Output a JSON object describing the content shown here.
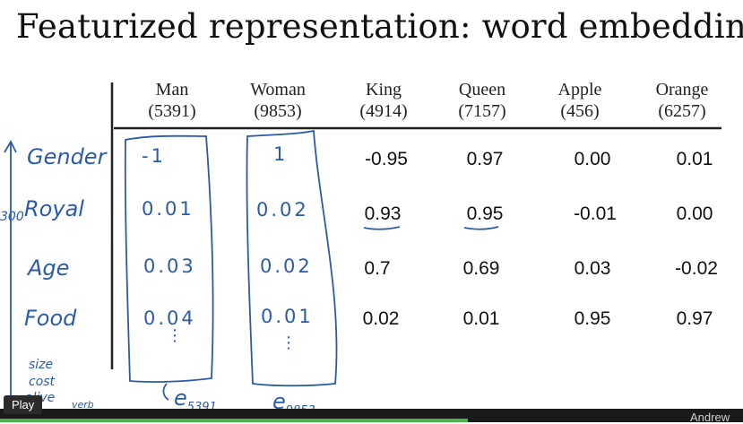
{
  "slide": {
    "title": "Featurized representation: word embedding",
    "columns": [
      {
        "word": "Man",
        "index": "(5391)"
      },
      {
        "word": "Woman",
        "index": "(9853)"
      },
      {
        "word": "King",
        "index": "(4914)"
      },
      {
        "word": "Queen",
        "index": "(7157)"
      },
      {
        "word": "Apple",
        "index": "(456)"
      },
      {
        "word": "Orange",
        "index": "(6257)"
      }
    ],
    "handwritten_rows": [
      "Gender",
      "Royal",
      "Age",
      "Food"
    ],
    "handwritten_extras": [
      "size",
      "cost",
      "alive",
      "verb"
    ],
    "dimension_label": "300",
    "handwritten_values": [
      [
        "-1",
        "1"
      ],
      [
        "0.01",
        "0.02"
      ],
      [
        "0.03",
        "0.02"
      ],
      [
        "0.04",
        "0.01"
      ]
    ],
    "vector_labels": [
      {
        "base": "e",
        "sub": "5391"
      },
      {
        "base": "e",
        "sub": "9853"
      }
    ],
    "typed_values": [
      [
        "-0.95",
        "0.97",
        "0.00",
        "0.01"
      ],
      [
        "0.93",
        "0.95",
        "-0.01",
        "0.00"
      ],
      [
        "0.7",
        "0.69",
        "0.03",
        "-0.02"
      ],
      [
        "0.02",
        "0.01",
        "0.95",
        "0.97"
      ]
    ]
  },
  "player": {
    "play_label": "Play",
    "author": "Andrew",
    "progress": 0.63
  },
  "colors": {
    "ink": "#2b5ba8",
    "progress": "#4ab54f"
  }
}
